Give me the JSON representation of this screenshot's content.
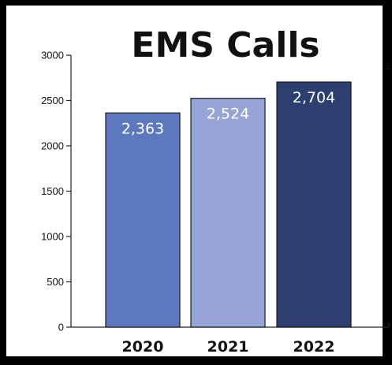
{
  "chart_data": {
    "type": "bar",
    "title": "EMS Calls",
    "categories": [
      "2020",
      "2021",
      "2022"
    ],
    "values": [
      2363,
      2524,
      2704
    ],
    "data_labels": [
      "2,363",
      "2,524",
      "2,704"
    ],
    "colors": [
      "#5c78bf",
      "#97a5d6",
      "#2d3f70"
    ],
    "ylim": [
      0,
      3000
    ],
    "yticks": [
      0,
      500,
      1000,
      1500,
      2000,
      2500,
      3000
    ],
    "xlabel": "",
    "ylabel": "",
    "grid": false,
    "legend": "none"
  },
  "edge_text": "1"
}
